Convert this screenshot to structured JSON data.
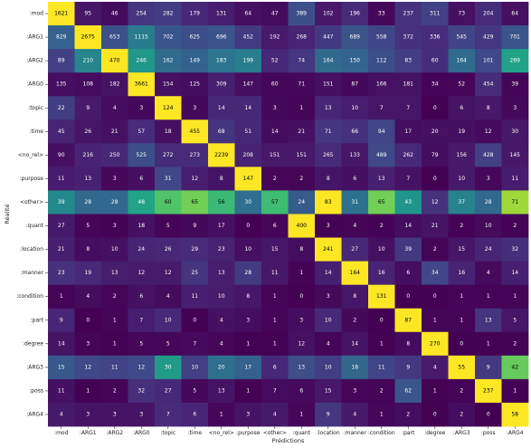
{
  "chart_data": {
    "type": "heatmap",
    "xlabel": "Prédictions",
    "ylabel": "Réalité",
    "colormap": "viridis",
    "row_labels": [
      ":mod",
      ":ARG1",
      ":ARG2",
      ":ARG0",
      ":topic",
      ":time",
      "<no_rel>",
      ":purpose",
      "<other>",
      ":quant",
      ":location",
      ":manner",
      ":condition",
      ":part",
      ":degree",
      ":ARG3",
      ":poss",
      ":ARG4"
    ],
    "col_labels": [
      ":mod",
      ":ARG1",
      ":ARG2",
      ":ARG0",
      ":topic",
      ":time",
      "<no_rel>",
      ":purpose",
      "<other>",
      ":quant",
      ":location",
      ":manner",
      ":condition",
      ":part",
      ":degree",
      ":ARG3",
      ":poss",
      ":ARG4"
    ],
    "values": [
      [
        1621,
        95,
        46,
        254,
        282,
        179,
        131,
        64,
        47,
        389,
        102,
        196,
        33,
        237,
        311,
        73,
        204,
        64
      ],
      [
        829,
        2675,
        653,
        1115,
        702,
        625,
        696,
        452,
        192,
        268,
        447,
        689,
        558,
        372,
        336,
        545,
        429,
        701
      ],
      [
        89,
        210,
        470,
        246,
        162,
        149,
        183,
        199,
        52,
        74,
        164,
        150,
        112,
        83,
        60,
        164,
        101,
        269
      ],
      [
        135,
        108,
        182,
        3661,
        154,
        125,
        309,
        147,
        60,
        71,
        151,
        87,
        166,
        181,
        34,
        52,
        454,
        39
      ],
      [
        22,
        9,
        4,
        3,
        124,
        3,
        14,
        14,
        3,
        1,
        13,
        10,
        7,
        7,
        0,
        6,
        8,
        3
      ],
      [
        45,
        26,
        21,
        57,
        18,
        455,
        68,
        51,
        14,
        21,
        71,
        66,
        94,
        17,
        20,
        19,
        12,
        30
      ],
      [
        90,
        216,
        250,
        525,
        272,
        273,
        2239,
        208,
        151,
        151,
        265,
        133,
        489,
        262,
        79,
        156,
        428,
        145
      ],
      [
        11,
        13,
        3,
        6,
        31,
        12,
        8,
        147,
        2,
        2,
        8,
        6,
        13,
        7,
        0,
        10,
        3,
        11
      ],
      [
        39,
        28,
        28,
        48,
        60,
        65,
        56,
        30,
        57,
        24,
        83,
        31,
        65,
        43,
        12,
        37,
        28,
        71
      ],
      [
        27,
        5,
        3,
        18,
        5,
        9,
        17,
        0,
        6,
        400,
        3,
        4,
        2,
        14,
        21,
        2,
        10,
        2
      ],
      [
        21,
        8,
        10,
        24,
        26,
        29,
        23,
        10,
        15,
        8,
        241,
        27,
        10,
        39,
        2,
        15,
        24,
        32
      ],
      [
        23,
        19,
        13,
        12,
        12,
        25,
        13,
        28,
        11,
        1,
        14,
        164,
        16,
        6,
        34,
        16,
        4,
        14
      ],
      [
        1,
        4,
        2,
        6,
        4,
        11,
        10,
        8,
        1,
        0,
        3,
        8,
        131,
        0,
        0,
        1,
        1,
        1
      ],
      [
        9,
        0,
        1,
        7,
        10,
        0,
        4,
        3,
        1,
        3,
        10,
        2,
        0,
        87,
        1,
        1,
        13,
        5
      ],
      [
        14,
        3,
        1,
        5,
        5,
        7,
        4,
        1,
        1,
        12,
        4,
        14,
        1,
        8,
        270,
        0,
        1,
        2
      ],
      [
        15,
        12,
        11,
        12,
        30,
        10,
        20,
        17,
        6,
        13,
        10,
        18,
        11,
        9,
        4,
        55,
        9,
        42
      ],
      [
        11,
        1,
        2,
        32,
        27,
        5,
        13,
        1,
        7,
        6,
        15,
        3,
        2,
        62,
        1,
        2,
        237,
        1
      ],
      [
        4,
        3,
        3,
        3,
        7,
        6,
        1,
        3,
        4,
        1,
        9,
        4,
        1,
        2,
        0,
        2,
        0,
        58
      ]
    ]
  }
}
